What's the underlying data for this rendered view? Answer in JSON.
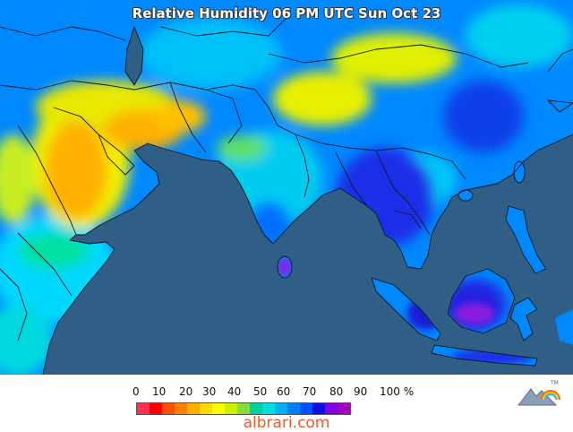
{
  "title": "Relative Humidity 06 PM UTC Sun Oct 23",
  "legend": {
    "labels": [
      "0",
      "10",
      "20",
      "30",
      "40",
      "50",
      "60",
      "70",
      "80",
      "90",
      "100 %"
    ],
    "colors": [
      "#ff3050",
      "#ff0000",
      "#ff5000",
      "#ff8000",
      "#ffb000",
      "#ffd800",
      "#ffff00",
      "#c8f000",
      "#80e040",
      "#00d0a0",
      "#00e0e0",
      "#00b0f0",
      "#0080ff",
      "#0050ff",
      "#1010e0",
      "#8000e0",
      "#a000c0"
    ]
  },
  "site": "albrari.com",
  "logo": {
    "mark": "TM"
  },
  "colors": {
    "ocean": "#2f5f86",
    "land_base": "#0088ff"
  }
}
